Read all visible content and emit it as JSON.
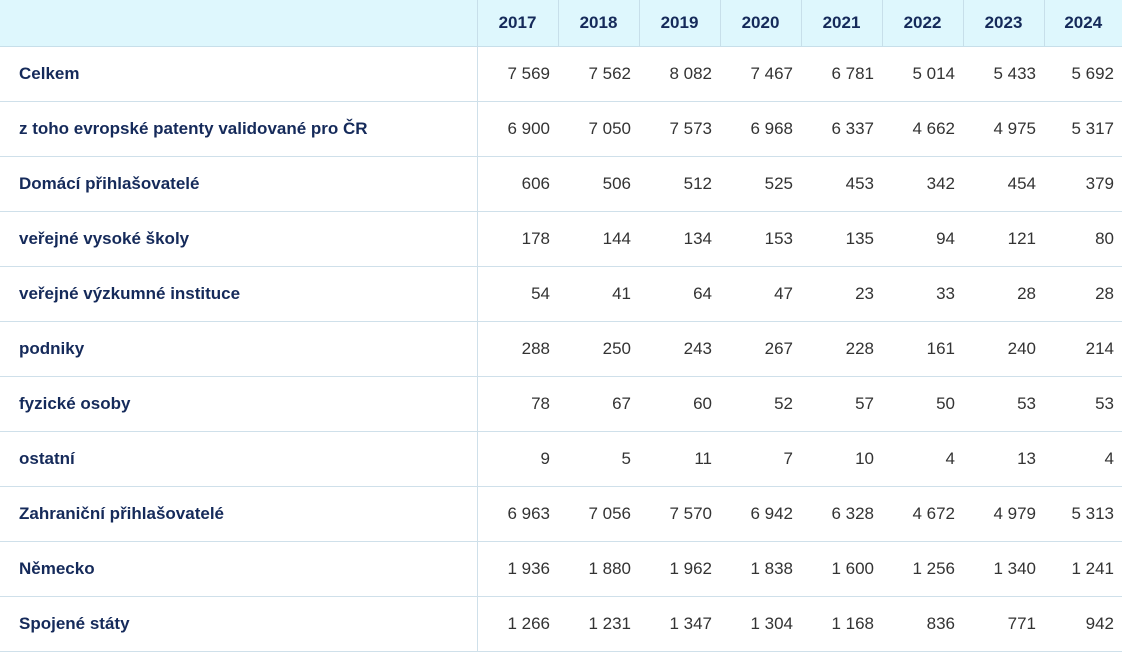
{
  "chart_data": {
    "type": "table",
    "columns": [
      "2017",
      "2018",
      "2019",
      "2020",
      "2021",
      "2022",
      "2023",
      "2024"
    ],
    "rows": [
      {
        "label": "Celkem",
        "values": [
          "7 569",
          "7 562",
          "8 082",
          "7 467",
          "6 781",
          "5 014",
          "5 433",
          "5 692"
        ]
      },
      {
        "label": "z toho evropské patenty validované pro ČR",
        "values": [
          "6 900",
          "7 050",
          "7 573",
          "6 968",
          "6 337",
          "4 662",
          "4 975",
          "5 317"
        ]
      },
      {
        "label": "Domácí přihlašovatelé",
        "values": [
          "606",
          "506",
          "512",
          "525",
          "453",
          "342",
          "454",
          "379"
        ]
      },
      {
        "label": "veřejné vysoké školy",
        "values": [
          "178",
          "144",
          "134",
          "153",
          "135",
          "94",
          "121",
          "80"
        ]
      },
      {
        "label": "veřejné výzkumné instituce",
        "values": [
          "54",
          "41",
          "64",
          "47",
          "23",
          "33",
          "28",
          "28"
        ]
      },
      {
        "label": "podniky",
        "values": [
          "288",
          "250",
          "243",
          "267",
          "228",
          "161",
          "240",
          "214"
        ]
      },
      {
        "label": "fyzické osoby",
        "values": [
          "78",
          "67",
          "60",
          "52",
          "57",
          "50",
          "53",
          "53"
        ]
      },
      {
        "label": "ostatní",
        "values": [
          "9",
          "5",
          "11",
          "7",
          "10",
          "4",
          "13",
          "4"
        ]
      },
      {
        "label": "Zahraniční přihlašovatelé",
        "values": [
          "6 963",
          "7 056",
          "7 570",
          "6 942",
          "6 328",
          "4 672",
          "4 979",
          "5 313"
        ]
      },
      {
        "label": "Německo",
        "values": [
          "1 936",
          "1 880",
          "1 962",
          "1 838",
          "1 600",
          "1 256",
          "1 340",
          "1 241"
        ]
      },
      {
        "label": "Spojené státy",
        "values": [
          "1 266",
          "1 231",
          "1 347",
          "1 304",
          "1 168",
          "836",
          "771",
          "942"
        ]
      }
    ]
  }
}
